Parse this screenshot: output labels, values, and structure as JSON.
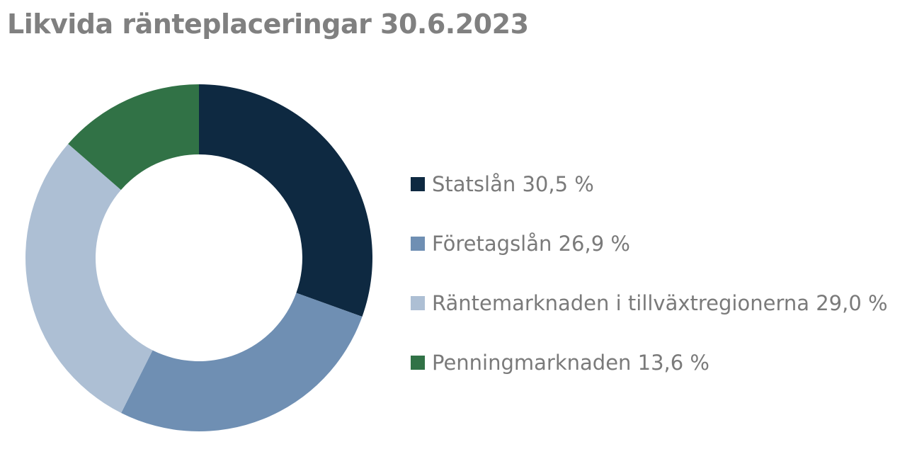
{
  "chart_data": {
    "type": "pie",
    "title": "Likvida ränteplaceringar 30.6.2023",
    "categories": [
      "Statslån",
      "Företagslån",
      "Räntemarknaden i tillväxtregionerna",
      "Penningmarknaden"
    ],
    "values": [
      30.5,
      26.9,
      29.0,
      13.6
    ],
    "unit": "%",
    "colors": [
      "#0e2941",
      "#6f8fb3",
      "#adbfd4",
      "#317246"
    ],
    "legend_labels": [
      "Statslån 30,5 %",
      "Företagslån 26,9 %",
      "Räntemarknaden i tillväxtregionerna 29,0 %",
      "Penningmarknaden 13,6 %"
    ],
    "legend_position": "right",
    "donut": true
  }
}
